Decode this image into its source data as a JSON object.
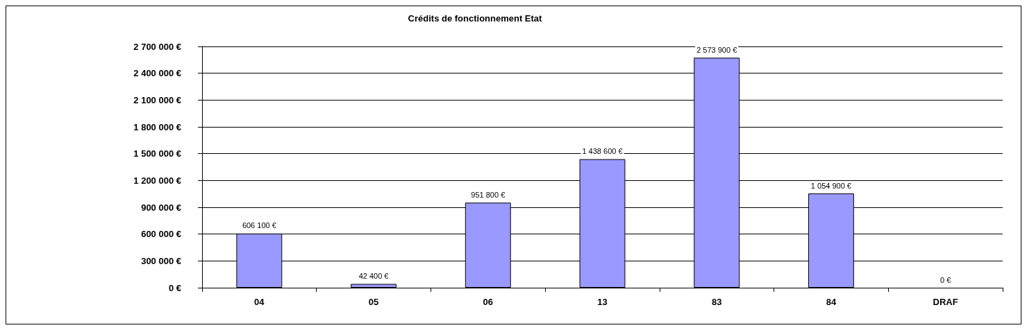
{
  "chart_data": {
    "type": "bar",
    "title": "Crédits de fonctionnement Etat",
    "categories": [
      "04",
      "05",
      "06",
      "13",
      "83",
      "84",
      "DRAF"
    ],
    "values": [
      606100,
      42400,
      951800,
      1438600,
      2573900,
      1054900,
      0
    ],
    "value_labels": [
      "606 100 €",
      "42 400 €",
      "951 800 €",
      "1 438 600 €",
      "2 573 900 €",
      "1 054 900 €",
      "0 €"
    ],
    "color": "#9999ff",
    "ylim": [
      0,
      2700000
    ],
    "yticks": [
      {
        "value": 0,
        "label": "0 €"
      },
      {
        "value": 300000,
        "label": "300 000 €"
      },
      {
        "value": 600000,
        "label": "600 000 €"
      },
      {
        "value": 900000,
        "label": "900 000 €"
      },
      {
        "value": 1200000,
        "label": "1 200 000 €"
      },
      {
        "value": 1500000,
        "label": "1 500 000 €"
      },
      {
        "value": 1800000,
        "label": "1 800 000 €"
      },
      {
        "value": 2100000,
        "label": "2 100 000 €"
      },
      {
        "value": 2400000,
        "label": "2 400 000 €"
      },
      {
        "value": 2700000,
        "label": "2 700 000 €"
      }
    ],
    "grid": "y"
  }
}
